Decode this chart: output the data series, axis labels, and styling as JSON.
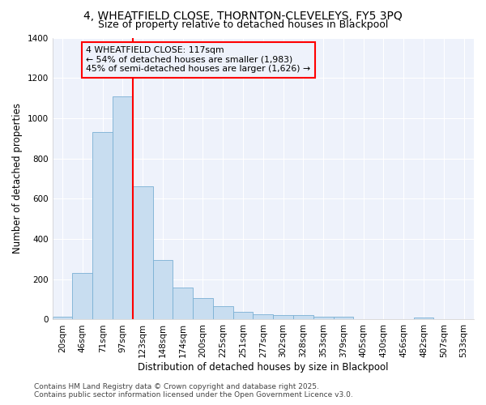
{
  "title_line1": "4, WHEATFIELD CLOSE, THORNTON-CLEVELEYS, FY5 3PQ",
  "title_line2": "Size of property relative to detached houses in Blackpool",
  "xlabel": "Distribution of detached houses by size in Blackpool",
  "ylabel": "Number of detached properties",
  "categories": [
    "20sqm",
    "46sqm",
    "71sqm",
    "97sqm",
    "123sqm",
    "148sqm",
    "174sqm",
    "200sqm",
    "225sqm",
    "251sqm",
    "277sqm",
    "302sqm",
    "328sqm",
    "353sqm",
    "379sqm",
    "405sqm",
    "430sqm",
    "456sqm",
    "482sqm",
    "507sqm",
    "533sqm"
  ],
  "values": [
    15,
    230,
    930,
    1110,
    660,
    295,
    160,
    105,
    68,
    38,
    25,
    22,
    20,
    15,
    12,
    0,
    0,
    0,
    8,
    0,
    0
  ],
  "bar_color": "#c8ddf0",
  "bar_edge_color": "#7ab0d4",
  "vline_color": "red",
  "annotation_title": "4 WHEATFIELD CLOSE: 117sqm",
  "annotation_line2": "← 54% of detached houses are smaller (1,983)",
  "annotation_line3": "45% of semi-detached houses are larger (1,626) →",
  "annotation_box_color": "red",
  "ylim": [
    0,
    1400
  ],
  "yticks": [
    0,
    200,
    400,
    600,
    800,
    1000,
    1200,
    1400
  ],
  "background_color": "#ffffff",
  "plot_bg_color": "#eef2fb",
  "grid_color": "#ffffff",
  "footer_line1": "Contains HM Land Registry data © Crown copyright and database right 2025.",
  "footer_line2": "Contains public sector information licensed under the Open Government Licence v3.0."
}
